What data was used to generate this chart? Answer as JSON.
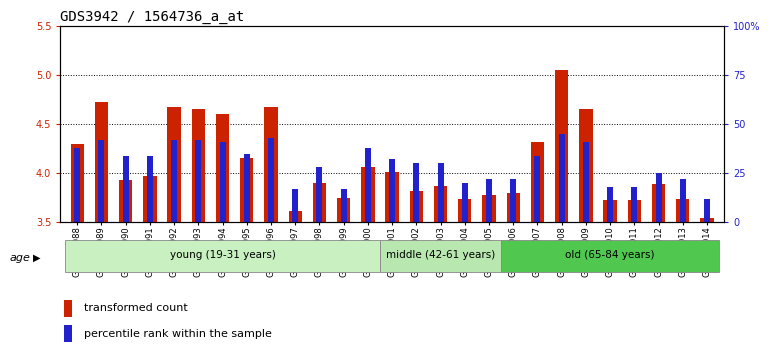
{
  "title": "GDS3942 / 1564736_a_at",
  "samples": [
    "GSM812988",
    "GSM812989",
    "GSM812990",
    "GSM812991",
    "GSM812992",
    "GSM812993",
    "GSM812994",
    "GSM812995",
    "GSM812996",
    "GSM812997",
    "GSM812998",
    "GSM812999",
    "GSM813000",
    "GSM813001",
    "GSM813002",
    "GSM813003",
    "GSM813004",
    "GSM813005",
    "GSM813006",
    "GSM813007",
    "GSM813008",
    "GSM813009",
    "GSM813010",
    "GSM813011",
    "GSM813012",
    "GSM813013",
    "GSM813014"
  ],
  "transformed_count": [
    4.3,
    4.73,
    3.93,
    3.97,
    4.67,
    4.65,
    4.6,
    4.15,
    4.67,
    3.62,
    3.9,
    3.75,
    4.06,
    4.01,
    3.82,
    3.87,
    3.74,
    3.78,
    3.8,
    4.32,
    5.05,
    4.65,
    3.73,
    3.73,
    3.89,
    3.74,
    3.54
  ],
  "percentile_rank": [
    38,
    42,
    34,
    34,
    42,
    42,
    41,
    35,
    43,
    17,
    28,
    17,
    38,
    32,
    30,
    30,
    20,
    22,
    22,
    34,
    45,
    41,
    18,
    18,
    25,
    22,
    12
  ],
  "groups": [
    {
      "label": "young (19-31 years)",
      "start": 0,
      "end": 13,
      "color": "#c8f0c0"
    },
    {
      "label": "middle (42-61 years)",
      "start": 13,
      "end": 18,
      "color": "#b8e8b0"
    },
    {
      "label": "old (65-84 years)",
      "start": 18,
      "end": 27,
      "color": "#50c850"
    }
  ],
  "ylim_left": [
    3.5,
    5.5
  ],
  "ylim_right": [
    0,
    100
  ],
  "yticks_left": [
    3.5,
    4.0,
    4.5,
    5.0,
    5.5
  ],
  "yticks_right": [
    0,
    25,
    50,
    75,
    100
  ],
  "ytick_labels_right": [
    "0",
    "25",
    "50",
    "75",
    "100%"
  ],
  "bar_color_red": "#cc2200",
  "bar_color_blue": "#2222cc",
  "title_fontsize": 10,
  "tick_fontsize": 7,
  "label_fontsize": 8,
  "legend_fontsize": 8
}
